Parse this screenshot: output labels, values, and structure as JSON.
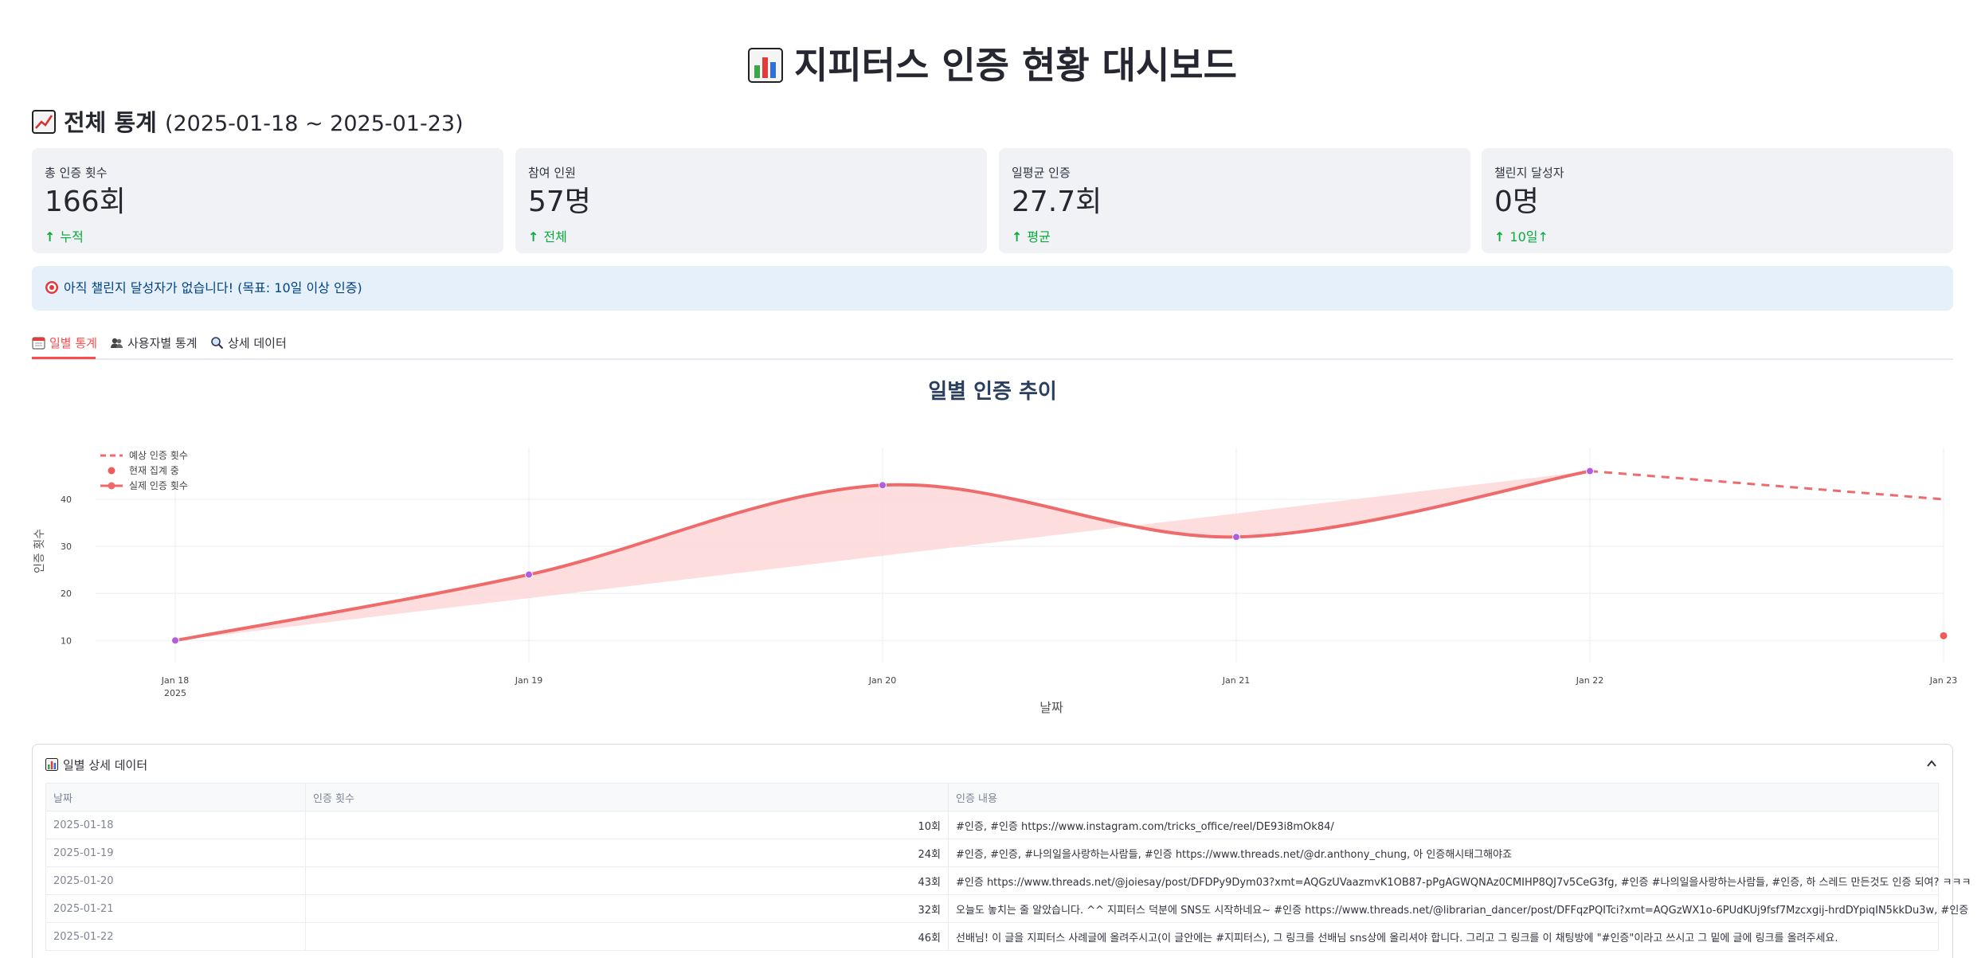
{
  "page": {
    "title": "지피터스 인증 현황 대시보드",
    "section_title": "전체 통계",
    "section_range": "(2025-01-18 ~ 2025-01-23)"
  },
  "metrics": [
    {
      "label": "총 인증 횟수",
      "value": "166회",
      "delta": "누적"
    },
    {
      "label": "참여 인원",
      "value": "57명",
      "delta": "전체"
    },
    {
      "label": "일평균 인증",
      "value": "27.7회",
      "delta": "평균"
    },
    {
      "label": "챌린지 달성자",
      "value": "0명",
      "delta": "10일↑"
    }
  ],
  "info_message": "아직 챌린지 달성자가 없습니다! (목표: 10일 이상 인증)",
  "tabs": [
    {
      "label": "일별 통계",
      "icon": "calendar-icon",
      "active": true
    },
    {
      "label": "사용자별 통계",
      "icon": "users-icon",
      "active": false
    },
    {
      "label": "상세 데이터",
      "icon": "magnifier-icon",
      "active": false
    }
  ],
  "chart_data": {
    "type": "line",
    "title": "일별 인증 추이",
    "xlabel": "날짜",
    "ylabel": "인증 횟수",
    "x": [
      "2025-01-18",
      "2025-01-19",
      "2025-01-20",
      "2025-01-21",
      "2025-01-22",
      "2025-01-23"
    ],
    "x_tick_labels": [
      "Jan 18",
      "Jan 19",
      "Jan 20",
      "Jan 21",
      "Jan 22",
      "Jan 23"
    ],
    "x_tick_sublabel": "2025",
    "y_ticks": [
      10,
      20,
      30,
      40
    ],
    "ylim": [
      7,
      51
    ],
    "grid": true,
    "legend_position": "top-left",
    "series": [
      {
        "name": "실제 인증 횟수",
        "style": "smooth-line-markers",
        "color": "#ef6b6b",
        "marker_color": "#b45ce0",
        "x": [
          "2025-01-18",
          "2025-01-19",
          "2025-01-20",
          "2025-01-21",
          "2025-01-22"
        ],
        "values": [
          10,
          24,
          43,
          32,
          46
        ]
      },
      {
        "name": "예상 인증 횟수",
        "style": "dashed",
        "color": "#ef6b6b",
        "x": [
          "2025-01-22",
          "2025-01-23"
        ],
        "values": [
          46,
          40
        ]
      },
      {
        "name": "현재 집계 중",
        "style": "marker",
        "color": "#ef5a5a",
        "x": [
          "2025-01-23"
        ],
        "values": [
          11
        ]
      }
    ],
    "trend_band_color": "#fdd9d9"
  },
  "table": {
    "expander_title": "일별 상세 데이터",
    "columns": [
      "날짜",
      "인증 횟수",
      "인증 내용"
    ],
    "rows": [
      {
        "date": "2025-01-18",
        "count": "10회",
        "content": "#인증, #인증 https://www.instagram.com/tricks_office/reel/DE93i8mOk84/"
      },
      {
        "date": "2025-01-19",
        "count": "24회",
        "content": "#인증, #인증, #나의일을사랑하는사람들, #인증 https://www.threads.net/@dr.anthony_chung, 아 인증해시태그해야죠"
      },
      {
        "date": "2025-01-20",
        "count": "43회",
        "content": "#인증 https://www.threads.net/@joiesay/post/DFDPy9Dym03?xmt=AQGzUVaazmvK1OB87-pPgAGWQNAz0CMIHP8QJ7v5CeG3fg, #인증 #나의일을사랑하는사람들, #인증, 하 스레드 만든것도 인증 되여? ㅋㅋㅋ"
      },
      {
        "date": "2025-01-21",
        "count": "32회",
        "content": "오늘도 놓치는 줄 알았습니다. ^^ 지피터스 덕분에 SNS도 시작하네요~ #인증 https://www.threads.net/@librarian_dancer/post/DFFqzPQITci?xmt=AQGzWX1o-6PUdKUj9fsf7Mzcxgij-hrdDYpiqIN5kkDu3w, #인증"
      },
      {
        "date": "2025-01-22",
        "count": "46회",
        "content": "선배님! 이 글을 지피터스 사례글에 올려주시고(이 글안에는 #지피터스), 그 링크를 선배님 sns상에 올리셔야 합니다. 그리고 그 링크를 이 채팅방에 \"#인증\"이라고 쓰시고 그 밑에 글에 링크를 올려주세요."
      }
    ]
  }
}
